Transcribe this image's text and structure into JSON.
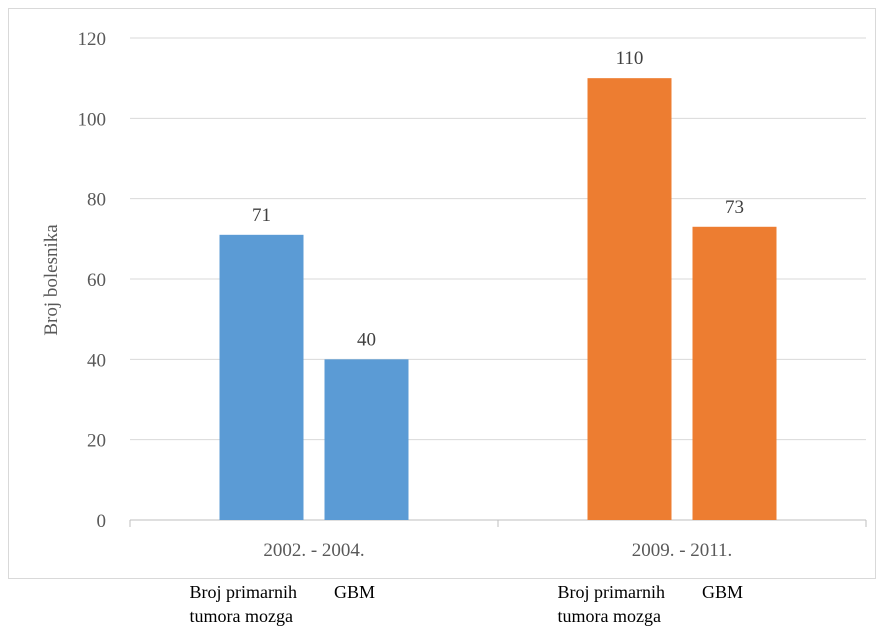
{
  "chart_data": {
    "type": "bar",
    "ylabel": "Broj bolesnika",
    "ylim": [
      0,
      120
    ],
    "yticks": [
      0,
      20,
      40,
      60,
      80,
      100,
      120
    ],
    "grid": true,
    "groups": [
      {
        "label": "2002. - 2004.",
        "color": "#5b9bd5",
        "bars": [
          {
            "label": "Broj primarnih tumora mozga",
            "value": 71
          },
          {
            "label": "GBM",
            "value": 40
          }
        ]
      },
      {
        "label": "2009. - 2011.",
        "color": "#ed7d31",
        "bars": [
          {
            "label": "Broj primarnih tumora mozga",
            "value": 110
          },
          {
            "label": "GBM",
            "value": 73
          }
        ]
      }
    ]
  }
}
